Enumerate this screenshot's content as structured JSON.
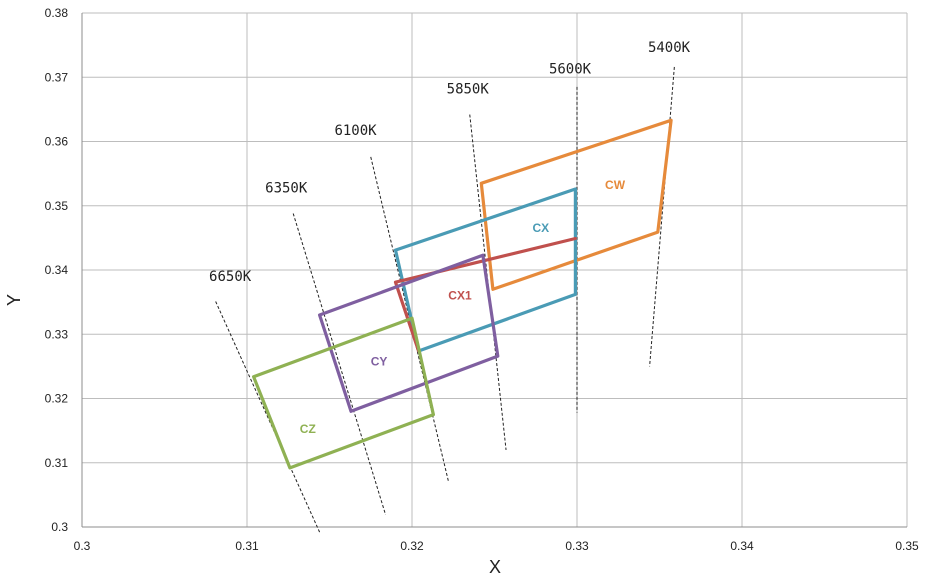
{
  "chart_data": {
    "type": "line",
    "xlabel": "X",
    "ylabel": "Y",
    "xlim": [
      0.3,
      0.35
    ],
    "ylim": [
      0.3,
      0.38
    ],
    "x_ticks": [
      "0.3",
      "0.31",
      "0.32",
      "0.33",
      "0.34",
      "0.35"
    ],
    "y_ticks": [
      "0.3",
      "0.31",
      "0.32",
      "0.33",
      "0.34",
      "0.35",
      "0.36",
      "0.37",
      "0.38"
    ],
    "grid": true,
    "series": [
      {
        "name": "CW",
        "color": "#e68a3b",
        "label_at": [
          0.3317,
          0.3526
        ],
        "points": [
          [
            0.3242,
            0.3535
          ],
          [
            0.3357,
            0.3633
          ],
          [
            0.3349,
            0.3459
          ],
          [
            0.3249,
            0.337
          ],
          [
            0.3242,
            0.3535
          ]
        ]
      },
      {
        "name": "CX",
        "color": "#4a9bb5",
        "label_at": [
          0.3273,
          0.3459
        ],
        "points": [
          [
            0.319,
            0.3431
          ],
          [
            0.3299,
            0.3526
          ],
          [
            0.3299,
            0.3362
          ],
          [
            0.3204,
            0.3274
          ],
          [
            0.319,
            0.3431
          ]
        ]
      },
      {
        "name": "CX1",
        "color": "#c0504d",
        "label_at": [
          0.3222,
          0.3354
        ],
        "points": [
          [
            0.3204,
            0.3274
          ],
          [
            0.319,
            0.3381
          ],
          [
            0.3299,
            0.3449
          ]
        ]
      },
      {
        "name": "CY",
        "color": "#7f5fa0",
        "label_at": [
          0.3175,
          0.3251
        ],
        "points": [
          [
            0.3144,
            0.333
          ],
          [
            0.3243,
            0.3423
          ],
          [
            0.3252,
            0.3266
          ],
          [
            0.3163,
            0.318
          ],
          [
            0.3144,
            0.333
          ]
        ]
      },
      {
        "name": "CZ",
        "color": "#8fb153",
        "label_at": [
          0.3132,
          0.3146
        ],
        "points": [
          [
            0.3104,
            0.3234
          ],
          [
            0.32,
            0.3325
          ],
          [
            0.3213,
            0.3175
          ],
          [
            0.3126,
            0.3092
          ],
          [
            0.3104,
            0.3234
          ]
        ]
      }
    ],
    "cct_lines": [
      {
        "label": "6650K",
        "label_at": [
          0.3077,
          0.3383
        ],
        "from": [
          0.3081,
          0.3351
        ],
        "to": [
          0.3144,
          0.2992
        ]
      },
      {
        "label": "6350K",
        "label_at": [
          0.3111,
          0.3521
        ],
        "from": [
          0.3128,
          0.3488
        ],
        "to": [
          0.3184,
          0.3019
        ]
      },
      {
        "label": "6100K",
        "label_at": [
          0.3153,
          0.361
        ],
        "from": [
          0.3175,
          0.3576
        ],
        "to": [
          0.3222,
          0.3072
        ]
      },
      {
        "label": "5850K",
        "label_at": [
          0.3221,
          0.3675
        ],
        "from": [
          0.3235,
          0.3642
        ],
        "to": [
          0.3257,
          0.312
        ]
      },
      {
        "label": "5600K",
        "label_at": [
          0.3283,
          0.3706
        ],
        "from": [
          0.33,
          0.3685
        ],
        "to": [
          0.33,
          0.3178
        ]
      },
      {
        "label": "5400K",
        "label_at": [
          0.3343,
          0.3739
        ],
        "from": [
          0.3359,
          0.3716
        ],
        "to": [
          0.3344,
          0.325
        ]
      }
    ]
  }
}
